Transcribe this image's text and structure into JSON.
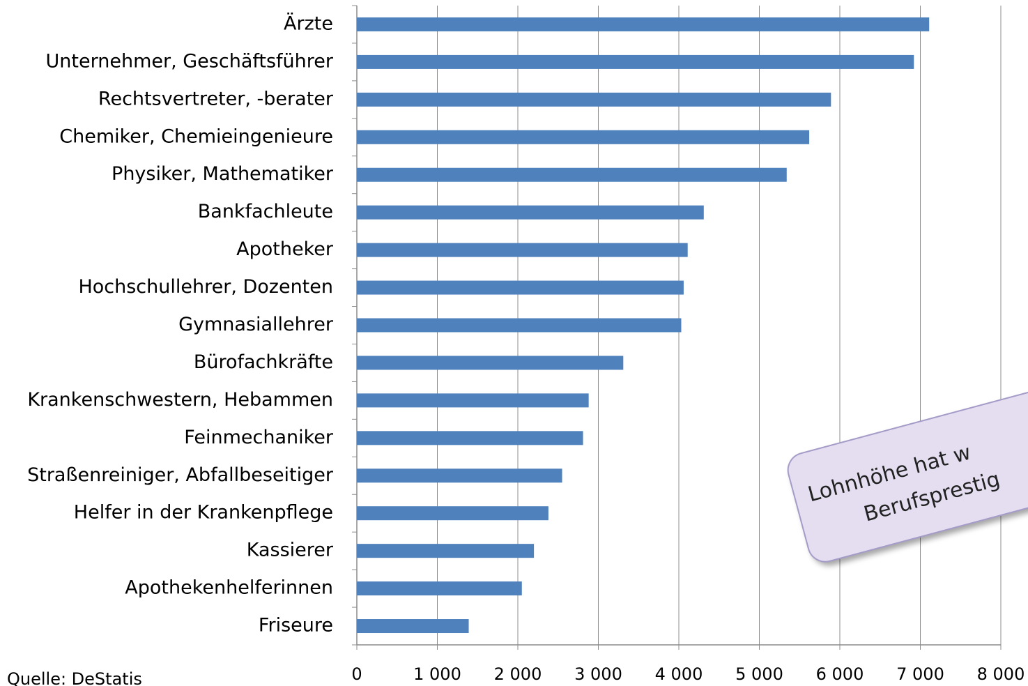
{
  "chart_data": {
    "type": "bar",
    "orientation": "horizontal",
    "categories": [
      "Ärzte",
      "Unternehmer, Geschäftsführer",
      "Rechtsvertreter, -berater",
      "Chemiker, Chemieingenieure",
      "Physiker, Mathematiker",
      "Bankfachleute",
      "Apotheker",
      "Hochschullehrer, Dozenten",
      "Gymnasiallehrer",
      "Bürofachkräfte",
      "Krankenschwestern, Hebammen",
      "Feinmechaniker",
      "Straßenreiniger, Abfallbeseitiger",
      "Helfer in der Krankenpflege",
      "Kassierer",
      "Apothekenhelferinnen",
      "Friseure"
    ],
    "values": [
      7110,
      6920,
      5890,
      5620,
      5340,
      4310,
      4110,
      4060,
      4030,
      3310,
      2880,
      2810,
      2550,
      2380,
      2200,
      2050,
      1390
    ],
    "color": "#4f81bd",
    "xlim": [
      0,
      8000
    ],
    "xticks": [
      0,
      {
        "value": 1000,
        "label": "1 000"
      },
      {
        "value": 2000,
        "label": "2 000"
      },
      {
        "value": 3000,
        "label": "3 000"
      },
      {
        "value": 4000,
        "label": "4 000"
      },
      {
        "value": 5000,
        "label": "5 000"
      },
      {
        "value": 6000,
        "label": "6 000"
      },
      {
        "value": 7000,
        "label": "7 000"
      },
      {
        "value": 8000,
        "label": "8 000"
      }
    ],
    "grid": true,
    "annotation": [
      "Lohnhöhe hat w",
      "Berufsprestig"
    ],
    "source": "Quelle: DeStatis"
  }
}
